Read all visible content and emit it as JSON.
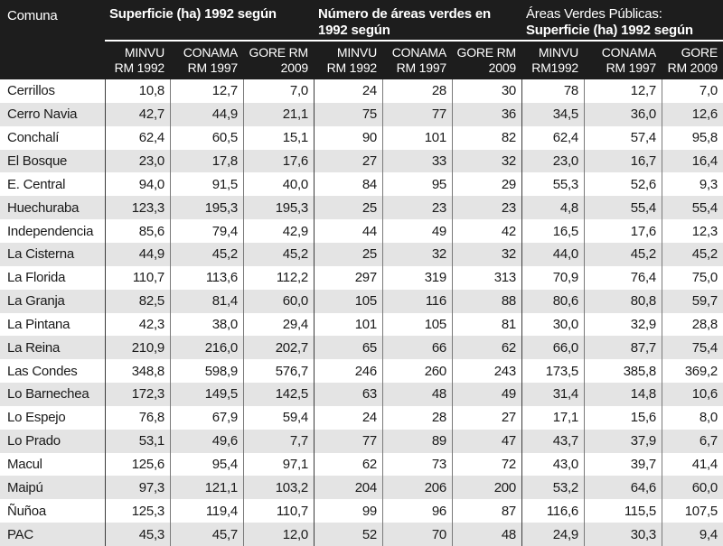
{
  "colors": {
    "header_bg": "#1d1d1d",
    "header_text": "#ffffff",
    "underline": "#ffffff",
    "row_alt_bg": "#e4e4e4",
    "line_inner": "#7a7a7a",
    "line_group": "#3c3c3c",
    "body_text": "#1a1a1a"
  },
  "header": {
    "comuna_label": "Comuna",
    "groups": [
      {
        "line1": "Superficie (ha) 1992 según",
        "line2": ""
      },
      {
        "line1": "Número de áreas verdes en",
        "line2": "1992 según"
      },
      {
        "line1": "Áreas Verdes Públicas:",
        "line2": "Superficie (ha) 1992 según"
      }
    ],
    "subcolumns": [
      {
        "line1": "MINVU",
        "line2": "RM 1992"
      },
      {
        "line1": "CONAMA",
        "line2": "RM 1997"
      },
      {
        "line1": "GORE RM",
        "line2": "2009"
      },
      {
        "line1": "MINVU",
        "line2": "RM 1992"
      },
      {
        "line1": "CONAMA",
        "line2": "RM 1997"
      },
      {
        "line1": "GORE RM",
        "line2": "2009"
      },
      {
        "line1": "MINVU",
        "line2": "RM1992"
      },
      {
        "line1": "CONAMA",
        "line2": "RM 1997"
      },
      {
        "line1": "GORE",
        "line2": "RM 2009"
      }
    ]
  },
  "chart_data": {
    "type": "table",
    "column_groups": [
      {
        "title": "Superficie (ha) 1992 según",
        "span": 3
      },
      {
        "title": "Número de áreas verdes en 1992 según",
        "span": 3
      },
      {
        "title": "Áreas Verdes Públicas: Superficie (ha) 1992 según",
        "span": 3
      }
    ],
    "columns": [
      "Comuna",
      "MINVU RM 1992",
      "CONAMA RM 1997",
      "GORE RM 2009",
      "MINVU RM 1992",
      "CONAMA RM 1997",
      "GORE RM 2009",
      "MINVU RM1992",
      "CONAMA RM 1997",
      "GORE RM 2009"
    ],
    "rows": [
      [
        "Cerrillos",
        "10,8",
        "12,7",
        "7,0",
        "24",
        "28",
        "30",
        "78",
        "12,7",
        "7,0"
      ],
      [
        "Cerro Navia",
        "42,7",
        "44,9",
        "21,1",
        "75",
        "77",
        "36",
        "34,5",
        "36,0",
        "12,6"
      ],
      [
        "Conchalí",
        "62,4",
        "60,5",
        "15,1",
        "90",
        "101",
        "82",
        "62,4",
        "57,4",
        "95,8"
      ],
      [
        "El Bosque",
        "23,0",
        "17,8",
        "17,6",
        "27",
        "33",
        "32",
        "23,0",
        "16,7",
        "16,4"
      ],
      [
        "E. Central",
        "94,0",
        "91,5",
        "40,0",
        "84",
        "95",
        "29",
        "55,3",
        "52,6",
        "9,3"
      ],
      [
        "Huechuraba",
        "123,3",
        "195,3",
        "195,3",
        "25",
        "23",
        "23",
        "4,8",
        "55,4",
        "55,4"
      ],
      [
        "Independencia",
        "85,6",
        "79,4",
        "42,9",
        "44",
        "49",
        "42",
        "16,5",
        "17,6",
        "12,3"
      ],
      [
        "La Cisterna",
        "44,9",
        "45,2",
        "45,2",
        "25",
        "32",
        "32",
        "44,0",
        "45,2",
        "45,2"
      ],
      [
        "La Florida",
        "110,7",
        "113,6",
        "112,2",
        "297",
        "319",
        "313",
        "70,9",
        "76,4",
        "75,0"
      ],
      [
        "La Granja",
        "82,5",
        "81,4",
        "60,0",
        "105",
        "116",
        "88",
        "80,6",
        "80,8",
        "59,7"
      ],
      [
        "La Pintana",
        "42,3",
        "38,0",
        "29,4",
        "101",
        "105",
        "81",
        "30,0",
        "32,9",
        "28,8"
      ],
      [
        "La Reina",
        "210,9",
        "216,0",
        "202,7",
        "65",
        "66",
        "62",
        "66,0",
        "87,7",
        "75,4"
      ],
      [
        "Las Condes",
        "348,8",
        "598,9",
        "576,7",
        "246",
        "260",
        "243",
        "173,5",
        "385,8",
        "369,2"
      ],
      [
        "Lo Barnechea",
        "172,3",
        "149,5",
        "142,5",
        "63",
        "48",
        "49",
        "31,4",
        "14,8",
        "10,6"
      ],
      [
        "Lo Espejo",
        "76,8",
        "67,9",
        "59,4",
        "24",
        "28",
        "27",
        "17,1",
        "15,6",
        "8,0"
      ],
      [
        "Lo Prado",
        "53,1",
        "49,6",
        "7,7",
        "77",
        "89",
        "47",
        "43,7",
        "37,9",
        "6,7"
      ],
      [
        "Macul",
        "125,6",
        "95,4",
        "97,1",
        "62",
        "73",
        "72",
        "43,0",
        "39,7",
        "41,4"
      ],
      [
        "Maipú",
        "97,3",
        "121,1",
        "103,2",
        "204",
        "206",
        "200",
        "53,2",
        "64,6",
        "60,0"
      ],
      [
        "Ñuñoa",
        "125,3",
        "119,4",
        "110,7",
        "99",
        "96",
        "87",
        "116,6",
        "115,5",
        "107,5"
      ],
      [
        "PAC",
        "45,3",
        "45,7",
        "12,0",
        "52",
        "70",
        "48",
        "24,9",
        "30,3",
        "9,4"
      ]
    ]
  }
}
